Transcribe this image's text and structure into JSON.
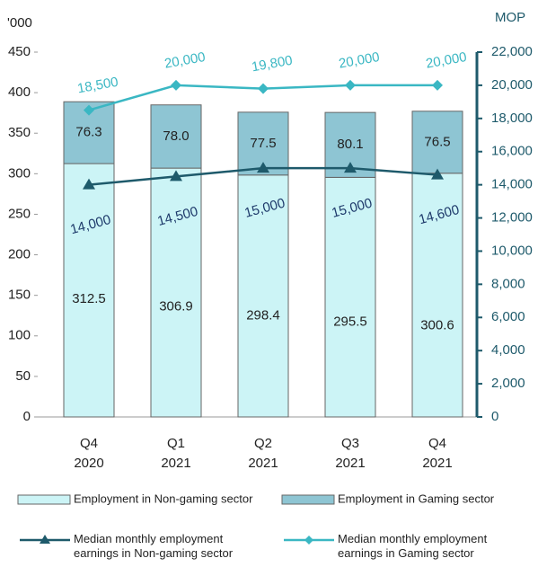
{
  "chart_data": {
    "type": "combo",
    "y_unit": "'000",
    "y2_unit": "MOP",
    "categories": [
      "Q4 2020",
      "Q1 2021",
      "Q2 2021",
      "Q3 2021",
      "Q4 2021"
    ],
    "ylim": [
      0,
      450
    ],
    "yticks": [
      0,
      50,
      100,
      150,
      200,
      250,
      300,
      350,
      400,
      450
    ],
    "y2lim": [
      0,
      22000
    ],
    "y2ticks": [
      0,
      {
        "value": 2000,
        "label": "2,000"
      },
      {
        "value": 4000,
        "label": "4,000"
      },
      {
        "value": 6000,
        "label": "6,000"
      },
      {
        "value": 8000,
        "label": "8,000"
      },
      {
        "value": 10000,
        "label": "10,000"
      },
      {
        "value": 12000,
        "label": "12,000"
      },
      {
        "value": 14000,
        "label": "14,000"
      },
      {
        "value": 16000,
        "label": "16,000"
      },
      {
        "value": 18000,
        "label": "18,000"
      },
      {
        "value": 20000,
        "label": "20,000"
      },
      {
        "value": 22000,
        "label": "22,000"
      }
    ],
    "series": [
      {
        "name": "Employment in Non-gaming sector",
        "type": "bar",
        "color": "#ccf4f6",
        "values": [
          312.5,
          306.9,
          298.4,
          295.5,
          300.6
        ]
      },
      {
        "name": "Employment in Gaming sector",
        "type": "bar",
        "color": "#8ec5d3",
        "values": [
          76.3,
          78.0,
          77.5,
          80.1,
          76.5
        ],
        "value_labels": [
          "76.3",
          "78.0",
          "77.5",
          "80.1",
          "76.5"
        ]
      },
      {
        "name": "Median monthly employment earnings in Non-gaming sector",
        "type": "line",
        "axis": "y2",
        "marker": "triangle",
        "color": "#1e5a6b",
        "values": [
          14000,
          14500,
          15000,
          15000,
          14600
        ],
        "value_labels": [
          "14,000",
          "14,500",
          "15,000",
          "15,000",
          "14,600"
        ]
      },
      {
        "name": "Median monthly employment earnings in Gaming sector",
        "type": "line",
        "axis": "y2",
        "marker": "diamond",
        "color": "#3ab7c3",
        "values": [
          18500,
          20000,
          19800,
          20000,
          20000
        ],
        "value_labels": [
          "18,500",
          "20,000",
          "19,800",
          "20,000",
          "20,000"
        ]
      }
    ]
  }
}
